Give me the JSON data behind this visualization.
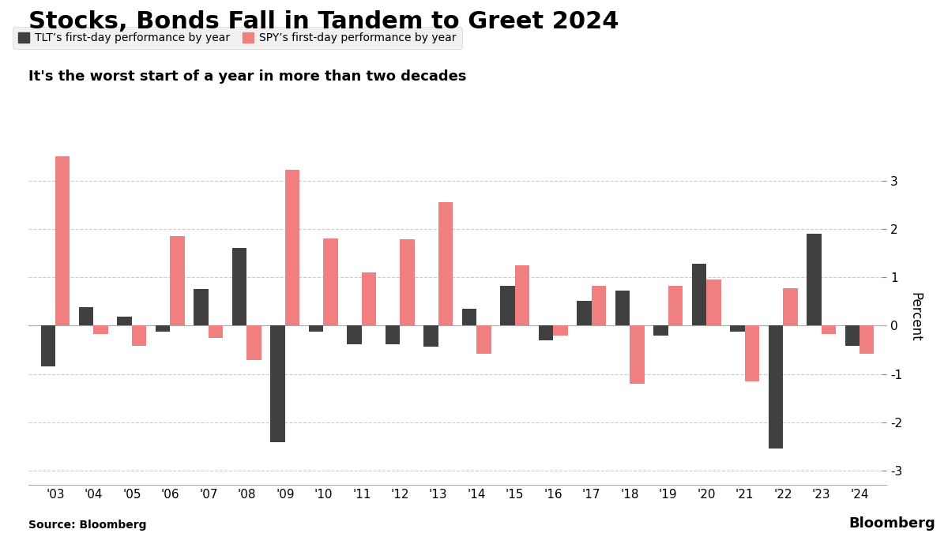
{
  "title": "Stocks, Bonds Fall in Tandem to Greet 2024",
  "subtitle": "It's the worst start of a year in more than two decades",
  "source": "Source: Bloomberg",
  "watermark": "Bloomberg",
  "ylabel": "Percent",
  "legend_tlt": "TLT’s first-day performance by year",
  "legend_spy": "SPY’s first-day performance by year",
  "years": [
    "'03",
    "'04",
    "'05",
    "'06",
    "'07",
    "'08",
    "'09",
    "'10",
    "'11",
    "'12",
    "'13",
    "'14",
    "'15",
    "'16",
    "'17",
    "'18",
    "'19",
    "'20",
    "'21",
    "'22",
    "'23",
    "'24"
  ],
  "tlt": [
    -0.85,
    0.38,
    0.18,
    -0.12,
    0.75,
    1.6,
    -2.42,
    -0.13,
    -0.38,
    -0.38,
    -0.43,
    0.35,
    0.82,
    -0.3,
    0.52,
    0.72,
    -0.2,
    1.28,
    -0.13,
    -2.55,
    1.9,
    -0.42
  ],
  "spy": [
    3.5,
    -0.18,
    -0.42,
    1.85,
    -0.25,
    -0.72,
    3.22,
    1.8,
    1.1,
    1.78,
    2.55,
    -0.58,
    1.25,
    -0.2,
    0.82,
    -1.2,
    0.82,
    0.95,
    -1.15,
    0.78,
    -0.17,
    -0.58
  ],
  "tlt_color": "#404040",
  "spy_color": "#F08080",
  "background_color": "#ffffff",
  "grid_color": "#cccccc",
  "ylim": [
    -3.3,
    3.65
  ],
  "yticks": [
    -3,
    -2,
    -1,
    0,
    1,
    2,
    3
  ],
  "title_fontsize": 22,
  "subtitle_fontsize": 13,
  "bar_width": 0.38
}
